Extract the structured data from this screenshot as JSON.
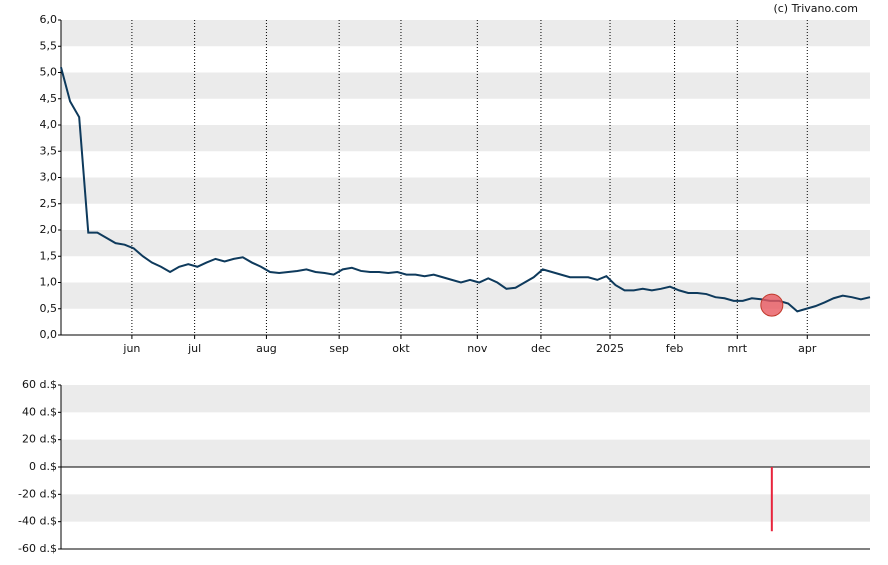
{
  "chart_data": [
    {
      "type": "line",
      "source": "(c) Trivano.com",
      "series": [
        {
          "color": "#0e3a5c",
          "values": [
            5.1,
            4.45,
            4.15,
            1.95,
            1.95,
            1.85,
            1.75,
            1.72,
            1.65,
            1.5,
            1.38,
            1.3,
            1.2,
            1.3,
            1.35,
            1.3,
            1.38,
            1.45,
            1.4,
            1.45,
            1.48,
            1.38,
            1.3,
            1.2,
            1.18,
            1.2,
            1.22,
            1.25,
            1.2,
            1.18,
            1.15,
            1.25,
            1.28,
            1.22,
            1.2,
            1.2,
            1.18,
            1.2,
            1.15,
            1.15,
            1.12,
            1.15,
            1.1,
            1.05,
            1.0,
            1.05,
            1.0,
            1.08,
            1.0,
            0.88,
            0.9,
            1.0,
            1.1,
            1.25,
            1.2,
            1.15,
            1.1,
            1.1,
            1.1,
            1.05,
            1.12,
            0.95,
            0.85,
            0.85,
            0.88,
            0.85,
            0.88,
            0.92,
            0.85,
            0.8,
            0.8,
            0.78,
            0.72,
            0.7,
            0.65,
            0.65,
            0.7,
            0.68,
            0.65,
            0.65,
            0.6,
            0.45,
            0.5,
            0.55,
            0.62,
            0.7,
            0.75,
            0.72,
            0.68,
            0.72
          ]
        }
      ],
      "markers": [
        {
          "x": 78.2,
          "y": 0.57,
          "color": "#e8585f"
        }
      ],
      "xlim": [
        0,
        89
      ],
      "xticks": [
        {
          "value": 7.8,
          "label": "jun"
        },
        {
          "value": 14.7,
          "label": "jul"
        },
        {
          "value": 22.6,
          "label": "aug"
        },
        {
          "value": 30.6,
          "label": "sep"
        },
        {
          "value": 37.4,
          "label": "okt"
        },
        {
          "value": 45.8,
          "label": "nov"
        },
        {
          "value": 52.8,
          "label": "dec"
        },
        {
          "value": 60.4,
          "label": "2025"
        },
        {
          "value": 67.5,
          "label": "feb"
        },
        {
          "value": 74.4,
          "label": "mrt"
        },
        {
          "value": 82.1,
          "label": "apr"
        }
      ],
      "ylim": [
        0,
        6
      ],
      "yticks": [
        {
          "value": 0,
          "label": "0,0"
        },
        {
          "value": 0.5,
          "label": "0,5"
        },
        {
          "value": 1,
          "label": "1,0"
        },
        {
          "value": 1.5,
          "label": "1,5"
        },
        {
          "value": 2,
          "label": "2,0"
        },
        {
          "value": 2.5,
          "label": "2,5"
        },
        {
          "value": 3,
          "label": "3,0"
        },
        {
          "value": 3.5,
          "label": "3,5"
        },
        {
          "value": 4,
          "label": "4,0"
        },
        {
          "value": 4.5,
          "label": "4,5"
        },
        {
          "value": 5,
          "label": "5,0"
        },
        {
          "value": 5.5,
          "label": "5,5"
        },
        {
          "value": 6,
          "label": "6,0"
        }
      ],
      "grid": true
    },
    {
      "type": "bar",
      "x": [
        78.2
      ],
      "values": [
        -47
      ],
      "color": "#e8243c",
      "xlim": [
        0,
        89
      ],
      "ylim": [
        -60,
        60
      ],
      "yticks": [
        {
          "value": -60,
          "label": "-60 d.$"
        },
        {
          "value": -40,
          "label": "-40 d.$"
        },
        {
          "value": -20,
          "label": "-20 d.$"
        },
        {
          "value": 0,
          "label": "0 d.$"
        },
        {
          "value": 20,
          "label": "20 d.$"
        },
        {
          "value": 40,
          "label": "40 d.$"
        },
        {
          "value": 60,
          "label": "60 d.$"
        }
      ]
    }
  ]
}
